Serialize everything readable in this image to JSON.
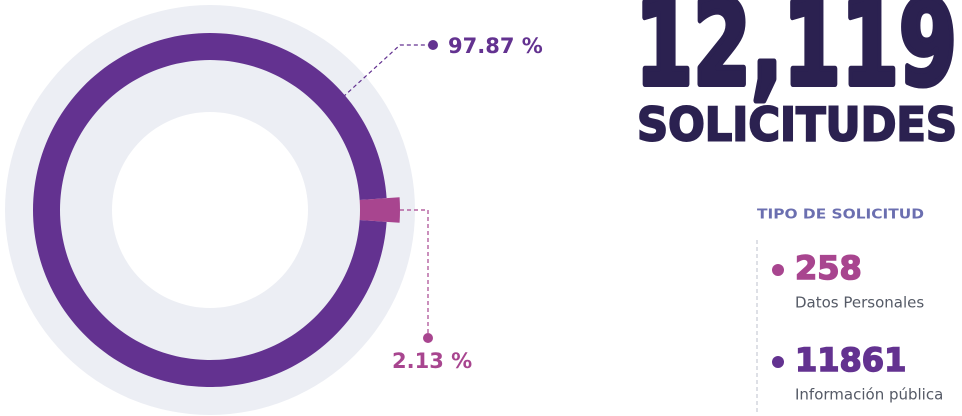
{
  "chart_data": {
    "type": "donut",
    "categories": [
      "Datos Personales",
      "Información pública"
    ],
    "values": [
      2.13,
      97.87
    ],
    "value_labels": [
      "2.13 %",
      "97.87 %"
    ],
    "colors": [
      "#a8458f",
      "#633290"
    ],
    "counts": [
      258,
      11861
    ],
    "total": "12,119",
    "total_unit": "SOLICITUDES",
    "legend_title": "TIPO DE SOLICITUD"
  }
}
